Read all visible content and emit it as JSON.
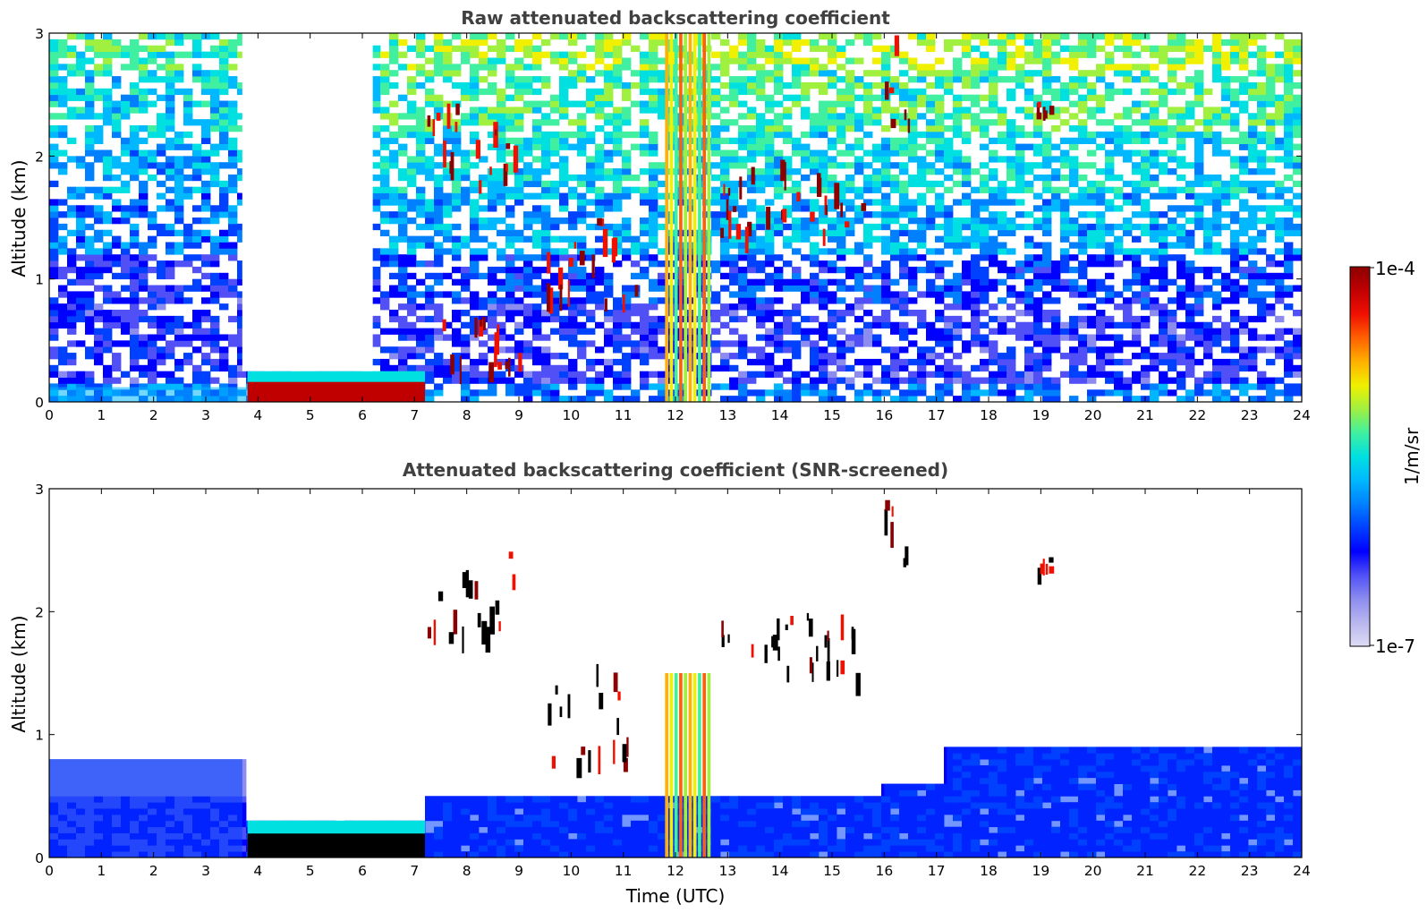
{
  "colors": {
    "colormap": [
      "#dedcf4",
      "#b8b6ee",
      "#8c8cf0",
      "#5050f6",
      "#0000ff",
      "#0040ff",
      "#0080ff",
      "#00b8ff",
      "#00e0e0",
      "#40f0a0",
      "#a0f040",
      "#f0f000",
      "#ffb000",
      "#ff6000",
      "#f01000",
      "#c00000",
      "#8b0000"
    ],
    "axes_frame": "#000000",
    "title_text": "#404040",
    "cloud_black": "#000000"
  },
  "colorbar": {
    "max_label": "1e-4",
    "min_label": "1e-7",
    "unit_label": "1/m/sr"
  },
  "chart_data": [
    {
      "type": "heatmap",
      "title": "Raw attenuated backscattering coefficient",
      "xlabel": "",
      "ylabel": "Altitude (km)",
      "xlim": [
        0,
        24
      ],
      "ylim": [
        0,
        3
      ],
      "x_ticks": [
        "0",
        "1",
        "2",
        "3",
        "4",
        "5",
        "6",
        "7",
        "8",
        "9",
        "10",
        "11",
        "12",
        "13",
        "14",
        "15",
        "16",
        "17",
        "18",
        "19",
        "20",
        "21",
        "22",
        "23",
        "24"
      ],
      "y_ticks": [
        "0",
        "1",
        "2",
        "3"
      ],
      "colorbar_range": [
        "1e-7",
        "1e-4"
      ],
      "features": [
        {
          "feature": "surface layer",
          "x": [
            0,
            3.8
          ],
          "y": [
            0,
            0.12
          ]
        },
        {
          "feature": "saturated layer",
          "x": [
            3.8,
            7.2
          ],
          "y": [
            0,
            0.25
          ]
        },
        {
          "feature": "signal-free gap",
          "x": [
            3.7,
            6.2
          ],
          "y": [
            0.25,
            3
          ]
        },
        {
          "feature": "rising layer",
          "x": [
            7.5,
            9.0
          ],
          "y": [
            0.3,
            0.7
          ]
        },
        {
          "feature": "upper cloud",
          "x": [
            7.2,
            9.0
          ],
          "y": [
            1.8,
            2.5
          ]
        },
        {
          "feature": "cloud",
          "x": [
            9.5,
            11.3
          ],
          "y": [
            0.8,
            1.6
          ]
        },
        {
          "feature": "precipitation streaks",
          "x": [
            11.8,
            12.7
          ],
          "y": [
            0,
            3
          ]
        },
        {
          "feature": "cloud",
          "x": [
            12.8,
            15.6
          ],
          "y": [
            1.4,
            2.0
          ]
        },
        {
          "feature": "cloud",
          "x": [
            16.0,
            16.5
          ],
          "y": [
            2.3,
            3.0
          ]
        },
        {
          "feature": "cloud",
          "x": [
            18.9,
            19.2
          ],
          "y": [
            2.35,
            2.45
          ]
        }
      ]
    },
    {
      "type": "heatmap",
      "title": "Attenuated backscattering coefficient (SNR-screened)",
      "xlabel": "Time (UTC)",
      "ylabel": "Altitude (km)",
      "xlim": [
        0,
        24
      ],
      "ylim": [
        0,
        3
      ],
      "x_ticks": [
        "0",
        "1",
        "2",
        "3",
        "4",
        "5",
        "6",
        "7",
        "8",
        "9",
        "10",
        "11",
        "12",
        "13",
        "14",
        "15",
        "16",
        "17",
        "18",
        "19",
        "20",
        "21",
        "22",
        "23",
        "24"
      ],
      "y_ticks": [
        "0",
        "1",
        "2",
        "3"
      ],
      "colorbar_range": [
        "1e-7",
        "1e-4"
      ],
      "features": [
        {
          "feature": "boundary layer",
          "x": [
            0,
            3.7
          ],
          "y": [
            0,
            0.8
          ]
        },
        {
          "feature": "saturated layer",
          "x": [
            3.8,
            7.2
          ],
          "y": [
            0,
            0.3
          ]
        },
        {
          "feature": "boundary layer",
          "x": [
            7.2,
            16.0
          ],
          "y": [
            0,
            0.5
          ]
        },
        {
          "feature": "boundary layer",
          "x": [
            16.0,
            17.2
          ],
          "y": [
            0,
            0.6
          ]
        },
        {
          "feature": "boundary layer",
          "x": [
            17.2,
            24.0
          ],
          "y": [
            0,
            0.9
          ]
        },
        {
          "feature": "upper cloud",
          "x": [
            7.2,
            9.0
          ],
          "y": [
            1.8,
            2.5
          ]
        },
        {
          "feature": "cloud",
          "x": [
            9.5,
            11.3
          ],
          "y": [
            0.8,
            1.6
          ]
        },
        {
          "feature": "precipitation streaks",
          "x": [
            11.8,
            12.7
          ],
          "y": [
            0,
            1.5
          ]
        },
        {
          "feature": "cloud",
          "x": [
            12.8,
            15.6
          ],
          "y": [
            1.4,
            2.0
          ]
        },
        {
          "feature": "cloud",
          "x": [
            16.0,
            16.5
          ],
          "y": [
            2.3,
            3.0
          ]
        },
        {
          "feature": "cloud",
          "x": [
            18.9,
            19.2
          ],
          "y": [
            2.35,
            2.45
          ]
        }
      ]
    }
  ]
}
